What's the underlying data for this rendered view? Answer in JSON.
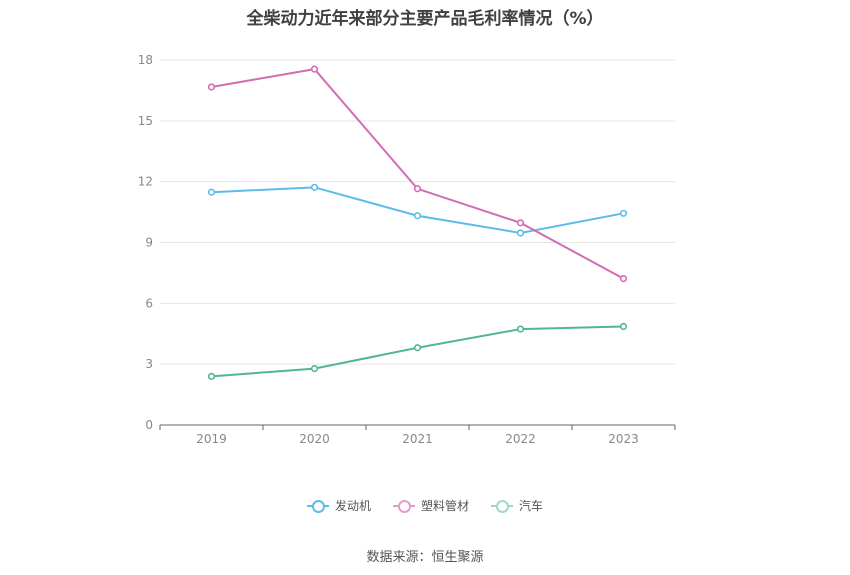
{
  "chart_data": {
    "type": "line",
    "title": "全柴动力近年来部分主要产品毛利率情况（%）",
    "categories": [
      "2019",
      "2020",
      "2021",
      "2022",
      "2023"
    ],
    "ylim": [
      0,
      18
    ],
    "yticks": [
      0,
      3,
      6,
      9,
      12,
      15,
      18
    ],
    "grid": true,
    "legend_position": "bottom",
    "series": [
      {
        "name": "发动机",
        "color": "#5bbcea",
        "values": [
          11.48,
          11.72,
          10.32,
          9.47,
          10.44
        ]
      },
      {
        "name": "塑料管材",
        "color": "#d36cb3",
        "values": [
          16.67,
          17.55,
          11.65,
          9.97,
          7.22
        ]
      },
      {
        "name": "汽车",
        "color": "#4fb59c",
        "values": [
          2.4,
          2.78,
          3.81,
          4.73,
          4.86
        ]
      }
    ]
  },
  "source": "数据来源：恒生聚源"
}
